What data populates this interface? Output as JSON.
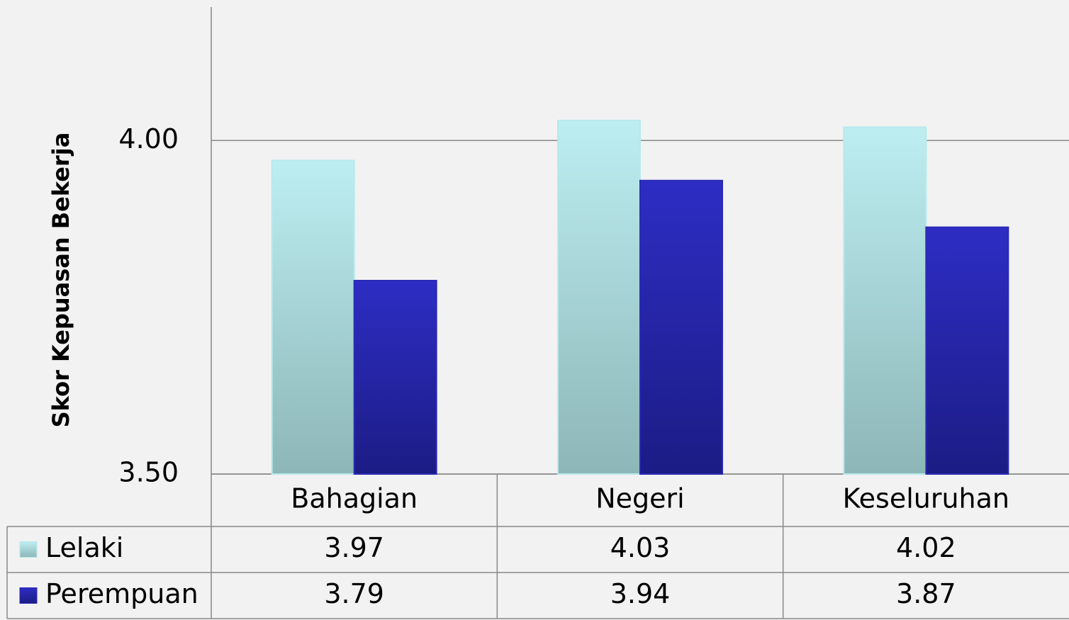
{
  "chart_data": {
    "type": "bar",
    "y_label": "Skor Kepuasan Bekerja",
    "categories": [
      "Bahagian",
      "Negeri",
      "Keseluruhan"
    ],
    "series": [
      {
        "name": "Lelaki",
        "color": "#b7e9ec",
        "values": [
          3.97,
          4.03,
          4.02
        ]
      },
      {
        "name": "Perempuan",
        "color": "#2a2ab5",
        "values": [
          3.79,
          3.94,
          3.87
        ]
      }
    ],
    "ylim": [
      3.5,
      4.2
    ],
    "yticks": [
      {
        "value": 3.5,
        "label": "3.50"
      },
      {
        "value": 4.0,
        "label": "4.00"
      }
    ],
    "grid": true
  }
}
